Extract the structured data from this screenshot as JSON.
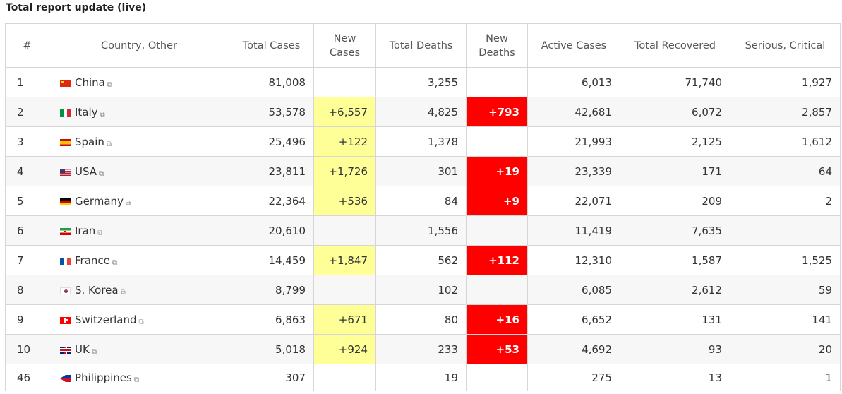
{
  "title": "Total report update (live)",
  "columns": {
    "idx": "#",
    "country": "Country, Other",
    "total_cases": "Total Cases",
    "new_cases": "New Cases",
    "total_deaths": "Total Deaths",
    "new_deaths": "New Deaths",
    "active_cases": "Active Cases",
    "total_recovered": "Total Recovered",
    "serious": "Serious, Critical"
  },
  "rows": [
    {
      "idx": "1",
      "country": "China",
      "flag": "china",
      "total_cases": "81,008",
      "new_cases": "",
      "total_deaths": "3,255",
      "new_deaths": "",
      "active_cases": "6,013",
      "total_recovered": "71,740",
      "serious": "1,927"
    },
    {
      "idx": "2",
      "country": "Italy",
      "flag": "italy",
      "total_cases": "53,578",
      "new_cases": "+6,557",
      "total_deaths": "4,825",
      "new_deaths": "+793",
      "active_cases": "42,681",
      "total_recovered": "6,072",
      "serious": "2,857"
    },
    {
      "idx": "3",
      "country": "Spain",
      "flag": "spain",
      "total_cases": "25,496",
      "new_cases": "+122",
      "total_deaths": "1,378",
      "new_deaths": "",
      "active_cases": "21,993",
      "total_recovered": "2,125",
      "serious": "1,612"
    },
    {
      "idx": "4",
      "country": "USA",
      "flag": "usa",
      "total_cases": "23,811",
      "new_cases": "+1,726",
      "total_deaths": "301",
      "new_deaths": "+19",
      "active_cases": "23,339",
      "total_recovered": "171",
      "serious": "64"
    },
    {
      "idx": "5",
      "country": "Germany",
      "flag": "germany",
      "total_cases": "22,364",
      "new_cases": "+536",
      "total_deaths": "84",
      "new_deaths": "+9",
      "active_cases": "22,071",
      "total_recovered": "209",
      "serious": "2"
    },
    {
      "idx": "6",
      "country": "Iran",
      "flag": "iran",
      "total_cases": "20,610",
      "new_cases": "",
      "total_deaths": "1,556",
      "new_deaths": "",
      "active_cases": "11,419",
      "total_recovered": "7,635",
      "serious": ""
    },
    {
      "idx": "7",
      "country": "France",
      "flag": "france",
      "total_cases": "14,459",
      "new_cases": "+1,847",
      "total_deaths": "562",
      "new_deaths": "+112",
      "active_cases": "12,310",
      "total_recovered": "1,587",
      "serious": "1,525"
    },
    {
      "idx": "8",
      "country": "S. Korea",
      "flag": "korea",
      "total_cases": "8,799",
      "new_cases": "",
      "total_deaths": "102",
      "new_deaths": "",
      "active_cases": "6,085",
      "total_recovered": "2,612",
      "serious": "59"
    },
    {
      "idx": "9",
      "country": "Switzerland",
      "flag": "switzerland",
      "total_cases": "6,863",
      "new_cases": "+671",
      "total_deaths": "80",
      "new_deaths": "+16",
      "active_cases": "6,652",
      "total_recovered": "131",
      "serious": "141"
    },
    {
      "idx": "10",
      "country": "UK",
      "flag": "uk",
      "total_cases": "5,018",
      "new_cases": "+924",
      "total_deaths": "233",
      "new_deaths": "+53",
      "active_cases": "4,692",
      "total_recovered": "93",
      "serious": "20"
    },
    {
      "idx": "46",
      "country": "Philippines",
      "flag": "philippines",
      "total_cases": "307",
      "new_cases": "",
      "total_deaths": "19",
      "new_deaths": "",
      "active_cases": "275",
      "total_recovered": "13",
      "serious": "1"
    }
  ],
  "icons": {
    "external_link": "external-link-icon"
  },
  "colors": {
    "new_cases_bg": "#ffff98",
    "new_deaths_bg": "#ff0000",
    "alt_row_bg": "#f7f7f7",
    "border": "#d6d6d6"
  }
}
